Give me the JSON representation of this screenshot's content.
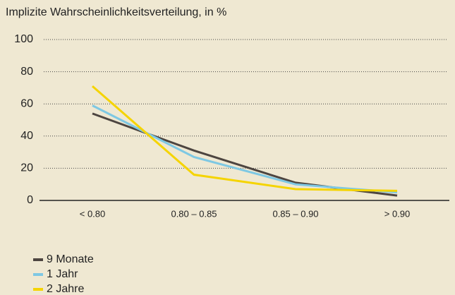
{
  "chart_data": {
    "type": "line",
    "subtitle": "Implizite Wahrscheinlichkeitsverteilung, in %",
    "categories": [
      "< 0.80",
      "0.80 – 0.85",
      "0.85 – 0.90",
      "> 0.90"
    ],
    "series": [
      {
        "name": "9 Monate",
        "color": "#4d4540",
        "values": [
          54,
          31,
          11,
          3
        ]
      },
      {
        "name": "1 Jahr",
        "color": "#7ec8e3",
        "values": [
          59,
          27,
          10,
          5
        ]
      },
      {
        "name": "2 Jahre",
        "color": "#f5d400",
        "values": [
          71,
          16,
          7,
          6
        ]
      }
    ],
    "ylim": [
      0,
      100
    ],
    "yticks": [
      0,
      20,
      40,
      60,
      80,
      100
    ],
    "grid": true,
    "legend": "bottom-left"
  }
}
